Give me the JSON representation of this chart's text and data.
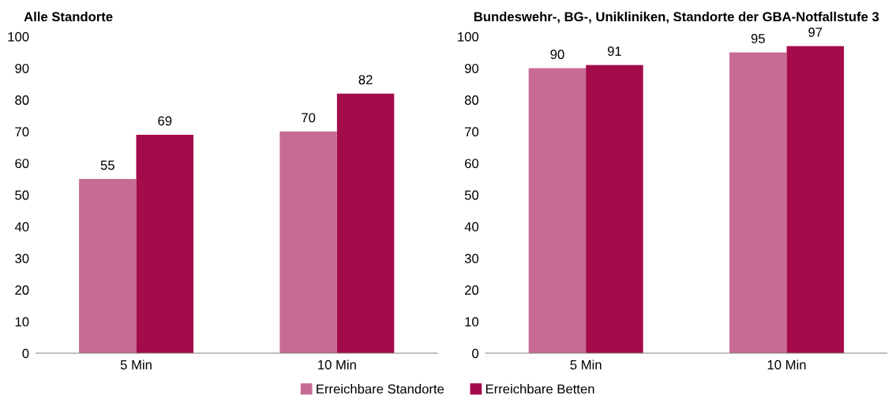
{
  "chart_data": [
    {
      "type": "bar",
      "title": "Alle Standorte",
      "categories": [
        "5 Min",
        "10 Min"
      ],
      "series": [
        {
          "name": "Erreichbare Standorte",
          "color": "#c76b94",
          "values": [
            55,
            70
          ]
        },
        {
          "name": "Erreichbare Betten",
          "color": "#a30b4b",
          "values": [
            69,
            82
          ]
        }
      ],
      "ylim": [
        0,
        100
      ],
      "yticks": [
        0,
        10,
        20,
        30,
        40,
        50,
        60,
        70,
        80,
        90,
        100
      ],
      "data_labels": true,
      "grid": false,
      "legend": "bottom"
    },
    {
      "type": "bar",
      "title": "Bundeswehr-, BG-, Unikliniken, Standorte der GBA-Notfallstufe 3",
      "categories": [
        "5 Min",
        "10 Min"
      ],
      "series": [
        {
          "color": "#c76b94",
          "values": [
            90,
            95
          ]
        },
        {
          "color": "#a30b4b",
          "values": [
            91,
            97
          ]
        }
      ],
      "ylim": [
        0,
        100
      ],
      "yticks": [
        0,
        10,
        20,
        30,
        40,
        50,
        60,
        70,
        80,
        90,
        100
      ],
      "data_labels": true,
      "grid": false
    }
  ]
}
